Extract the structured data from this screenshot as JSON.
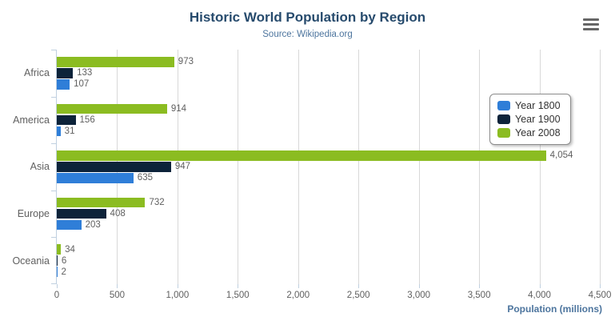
{
  "header": {
    "title": "Historic World Population by Region",
    "subtitle": "Source: Wikipedia.org"
  },
  "export_menu": {
    "icon": "hamburger-menu-icon"
  },
  "x_axis": {
    "title": "Population (millions)",
    "ticks": [
      {
        "value": 0,
        "label": "0"
      },
      {
        "value": 500,
        "label": "500"
      },
      {
        "value": 1000,
        "label": "1,000"
      },
      {
        "value": 1500,
        "label": "1,500"
      },
      {
        "value": 2000,
        "label": "2,000"
      },
      {
        "value": 2500,
        "label": "2,500"
      },
      {
        "value": 3000,
        "label": "3,000"
      },
      {
        "value": 3500,
        "label": "3,500"
      },
      {
        "value": 4000,
        "label": "4,000"
      },
      {
        "value": 4500,
        "label": "4,500"
      }
    ]
  },
  "chart_data": {
    "type": "bar",
    "orientation": "horizontal",
    "title": "Historic World Population by Region",
    "subtitle": "Source: Wikipedia.org",
    "categories": [
      "Africa",
      "America",
      "Asia",
      "Europe",
      "Oceania"
    ],
    "series": [
      {
        "name": "Year 1800",
        "color": "#2f7ed8",
        "values": [
          107,
          31,
          635,
          203,
          2
        ]
      },
      {
        "name": "Year 1900",
        "color": "#0d233a",
        "values": [
          133,
          156,
          947,
          408,
          6
        ]
      },
      {
        "name": "Year 2008",
        "color": "#8bbc21",
        "values": [
          973,
          914,
          4054,
          732,
          34
        ]
      }
    ],
    "series_display_order_top_to_bottom": [
      2,
      1,
      0
    ],
    "data_labels_shown": true,
    "xlabel": "Population (millions)",
    "ylabel": "",
    "xlim": [
      0,
      4500
    ],
    "grid": true,
    "legend_position": "right"
  },
  "colors": {
    "title": "#274b6d",
    "subtitle": "#4d759e",
    "axis_title": "#4d759e",
    "labels": "#606060",
    "gridline": "#d8d8d8",
    "axis_line": "#c0d0e0",
    "legend_text": "#333333",
    "legend_border": "#8c8c8c",
    "menu_icon": "#666666"
  }
}
